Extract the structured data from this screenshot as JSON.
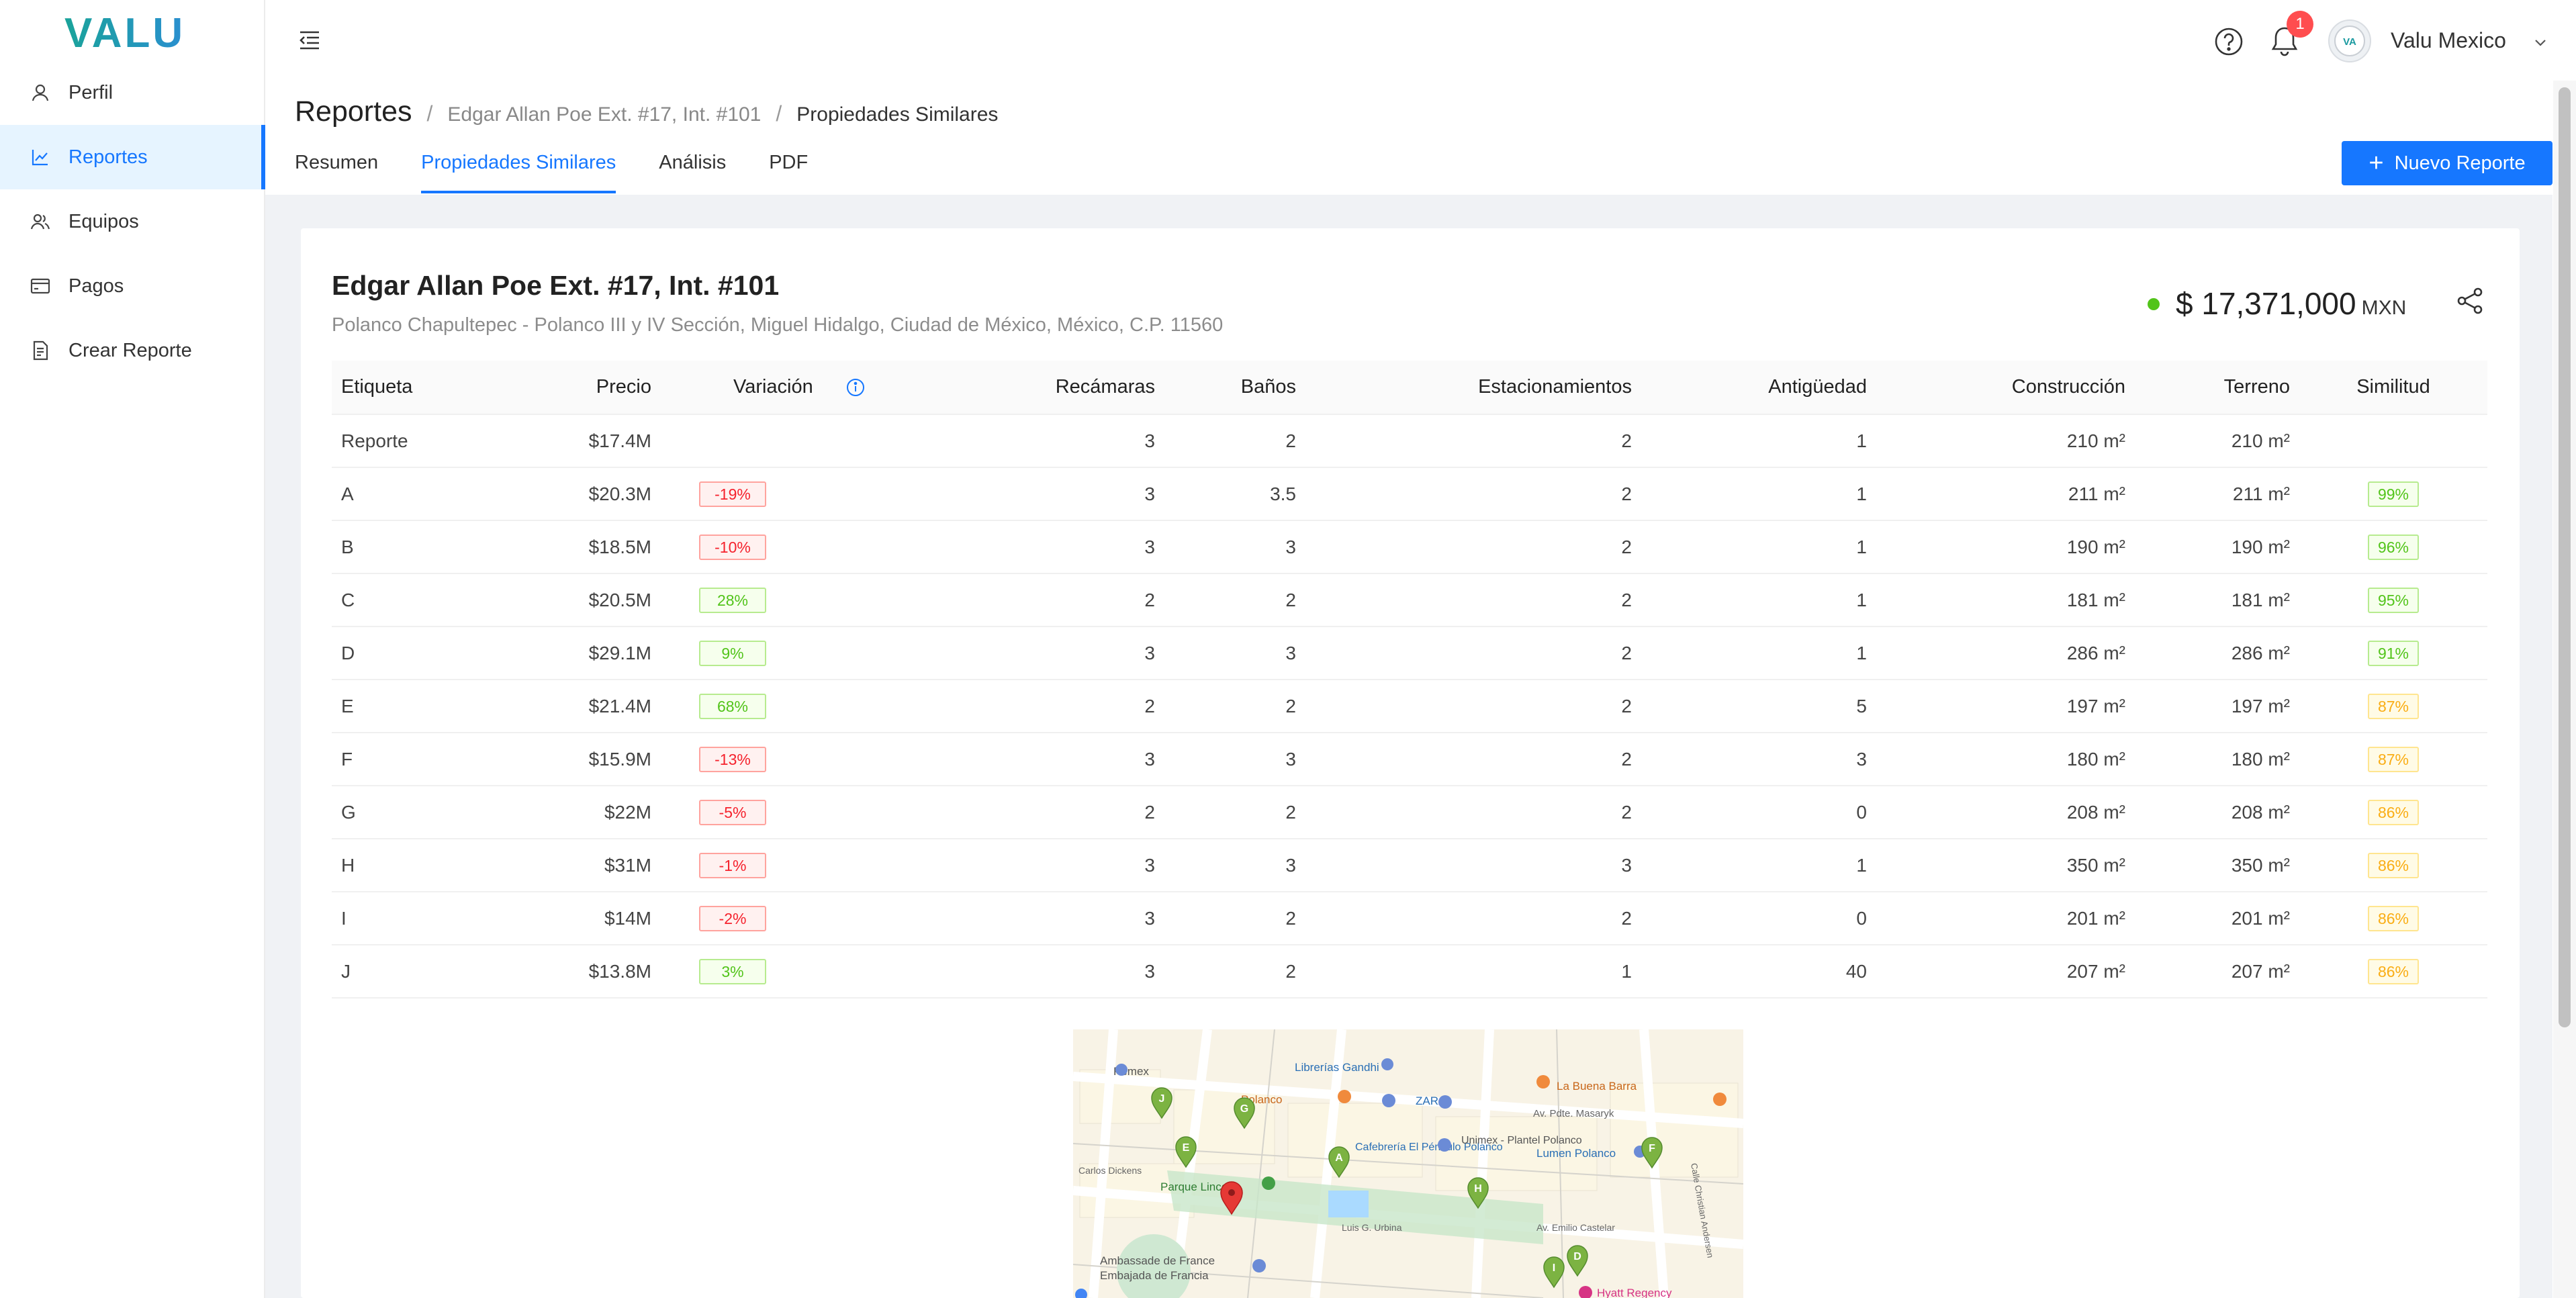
{
  "brand": {
    "logo_text": "VALU"
  },
  "sidebar": {
    "items": [
      {
        "label": "Perfil",
        "icon": "user-icon",
        "active": false
      },
      {
        "label": "Reportes",
        "icon": "line-chart-icon",
        "active": true
      },
      {
        "label": "Equipos",
        "icon": "team-icon",
        "active": false
      },
      {
        "label": "Pagos",
        "icon": "credit-card-icon",
        "active": false
      },
      {
        "label": "Crear Reporte",
        "icon": "file-add-icon",
        "active": false
      }
    ]
  },
  "header": {
    "notification_count": "1",
    "user_name": "Valu Mexico",
    "avatar_text": "VA"
  },
  "page": {
    "title": "Reportes",
    "breadcrumb": [
      "Edgar Allan Poe Ext. #17, Int. #101",
      "Propiedades Similares"
    ],
    "tabs": [
      {
        "label": "Resumen",
        "active": false
      },
      {
        "label": "Propiedades Similares",
        "active": true
      },
      {
        "label": "Análisis",
        "active": false
      },
      {
        "label": "PDF",
        "active": false
      }
    ],
    "new_report_label": "Nuevo Reporte"
  },
  "property": {
    "title": "Edgar Allan Poe Ext. #17, Int. #101",
    "address": "Polanco Chapultepec - Polanco III y IV Sección, Miguel Hidalgo, Ciudad de México, México, C.P. 11560",
    "price": "$ 17,371,000",
    "currency": "MXN"
  },
  "table": {
    "headers": [
      "Etiqueta",
      "Precio",
      "Variación",
      "Recámaras",
      "Baños",
      "Estacionamientos",
      "Antigüedad",
      "Construcción",
      "Terreno",
      "Similitud"
    ],
    "rows": [
      {
        "label": "Reporte",
        "price": "$17.4M",
        "variation": "",
        "var_color": "",
        "bedrooms": "3",
        "baths": "2",
        "parking": "2",
        "age": "1",
        "construction": "210 m²",
        "land": "210 m²",
        "similarity": "",
        "sim_color": ""
      },
      {
        "label": "A",
        "price": "$20.3M",
        "variation": "-19%",
        "var_color": "red",
        "bedrooms": "3",
        "baths": "3.5",
        "parking": "2",
        "age": "1",
        "construction": "211 m²",
        "land": "211 m²",
        "similarity": "99%",
        "sim_color": "green"
      },
      {
        "label": "B",
        "price": "$18.5M",
        "variation": "-10%",
        "var_color": "red",
        "bedrooms": "3",
        "baths": "3",
        "parking": "2",
        "age": "1",
        "construction": "190 m²",
        "land": "190 m²",
        "similarity": "96%",
        "sim_color": "green"
      },
      {
        "label": "C",
        "price": "$20.5M",
        "variation": "28%",
        "var_color": "green",
        "bedrooms": "2",
        "baths": "2",
        "parking": "2",
        "age": "1",
        "construction": "181 m²",
        "land": "181 m²",
        "similarity": "95%",
        "sim_color": "green"
      },
      {
        "label": "D",
        "price": "$29.1M",
        "variation": "9%",
        "var_color": "green",
        "bedrooms": "3",
        "baths": "3",
        "parking": "2",
        "age": "1",
        "construction": "286 m²",
        "land": "286 m²",
        "similarity": "91%",
        "sim_color": "green"
      },
      {
        "label": "E",
        "price": "$21.4M",
        "variation": "68%",
        "var_color": "green",
        "bedrooms": "2",
        "baths": "2",
        "parking": "2",
        "age": "5",
        "construction": "197 m²",
        "land": "197 m²",
        "similarity": "87%",
        "sim_color": "gold"
      },
      {
        "label": "F",
        "price": "$15.9M",
        "variation": "-13%",
        "var_color": "red",
        "bedrooms": "3",
        "baths": "3",
        "parking": "2",
        "age": "3",
        "construction": "180 m²",
        "land": "180 m²",
        "similarity": "87%",
        "sim_color": "gold"
      },
      {
        "label": "G",
        "price": "$22M",
        "variation": "-5%",
        "var_color": "red",
        "bedrooms": "2",
        "baths": "2",
        "parking": "2",
        "age": "0",
        "construction": "208 m²",
        "land": "208 m²",
        "similarity": "86%",
        "sim_color": "gold"
      },
      {
        "label": "H",
        "price": "$31M",
        "variation": "-1%",
        "var_color": "red",
        "bedrooms": "3",
        "baths": "3",
        "parking": "3",
        "age": "1",
        "construction": "350 m²",
        "land": "350 m²",
        "similarity": "86%",
        "sim_color": "gold"
      },
      {
        "label": "I",
        "price": "$14M",
        "variation": "-2%",
        "var_color": "red",
        "bedrooms": "3",
        "baths": "2",
        "parking": "2",
        "age": "0",
        "construction": "201 m²",
        "land": "201 m²",
        "similarity": "86%",
        "sim_color": "gold"
      },
      {
        "label": "J",
        "price": "$13.8M",
        "variation": "3%",
        "var_color": "green",
        "bedrooms": "3",
        "baths": "2",
        "parking": "1",
        "age": "40",
        "construction": "207 m²",
        "land": "207 m²",
        "similarity": "86%",
        "sim_color": "gold"
      }
    ]
  },
  "map": {
    "labels": {
      "pemex": "Pemex",
      "gandhi": "Librerías Gandhi",
      "buena_barra": "La Buena Barra",
      "polanco": "Polanco",
      "zara": "ZARA",
      "masaryk": "Av. Pdte. Masaryk",
      "cafebreria": "Cafebrería El Péndulo Polanco",
      "unimex": "Unimex - Plantel Polanco",
      "lumen": "Lumen Polanco",
      "dickens": "Carlos Dickens",
      "lincoln": "Parque Lincoln",
      "urbina": "Luis G. Urbina",
      "castelar": "Av. Emilio Castelar",
      "ambassade": "Ambassade de France",
      "embajada": "Embajada de Francia",
      "hyatt": "Hyatt Regency",
      "andersen": "Calle Christian Andersen"
    },
    "markers": [
      "J",
      "G",
      "E",
      "A",
      "H",
      "F",
      "I",
      "D"
    ],
    "subject_color": "#e53935",
    "marker_color": "#7cb342"
  },
  "colors": {
    "accent": "#1677ff",
    "success": "#52c41a",
    "danger": "#f5222d",
    "warning": "#faad14"
  }
}
